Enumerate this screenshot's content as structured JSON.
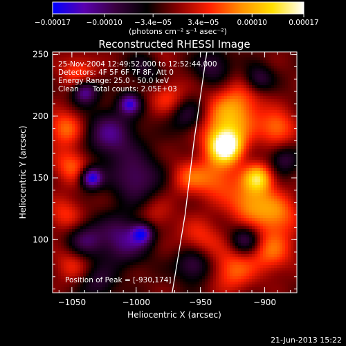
{
  "chart_data": {
    "type": "heatmap",
    "title": "Reconstructed RHESSI Image",
    "xlabel": "Heliocentric X (arcsec)",
    "ylabel": "Heliocentric Y (arcsec)",
    "xlim": [
      -1065,
      -875
    ],
    "ylim": [
      57,
      252
    ],
    "x_ticks": [
      -1050,
      -1000,
      -950,
      -900
    ],
    "x_tick_labels": [
      "−1050",
      "−1000",
      "−950",
      "−900"
    ],
    "y_ticks": [
      100,
      150,
      200,
      250
    ],
    "y_tick_labels": [
      "100",
      "150",
      "200",
      "250"
    ],
    "colorbar": {
      "range": [
        -0.00017,
        0.00017
      ],
      "ticks": [
        -0.00017,
        -0.0001,
        -3.4e-05,
        3.4e-05,
        0.0001,
        0.00017
      ],
      "tick_labels": [
        "−0.00017",
        "−0.00010",
        "−3.4e−05",
        "3.4e−05",
        "0.00010",
        "0.00017"
      ],
      "unit_label": "(photons cm⁻² s⁻¹ asec⁻²)",
      "colors": [
        "#0000ff",
        "#5a00b0",
        "#3a0040",
        "#000000",
        "#8a0000",
        "#ff2000",
        "#ff9000",
        "#ffe000",
        "#ffffff"
      ]
    },
    "annotations": [
      "25-Nov-2004 12:49:52.000 to 12:52:44.000",
      "Detectors: 4F 5F 6F 7F 8F, Att 0",
      "Energy Range: 25.0 - 50.0 keV",
      "Clean      Total counts: 2.05E+03"
    ],
    "peak_label": "Position of Peak = [-930,174]",
    "peak": {
      "x": -930,
      "y": 174
    },
    "limb_line": [
      [
        -972,
        57
      ],
      [
        -962,
        120
      ],
      [
        -955,
        180
      ],
      [
        -945,
        252
      ]
    ],
    "blobs": [
      {
        "x": -930,
        "y": 175,
        "v": 1.0,
        "s": 9
      },
      {
        "x": -932,
        "y": 190,
        "v": 0.55,
        "s": 14
      },
      {
        "x": -938,
        "y": 150,
        "v": 0.45,
        "s": 12
      },
      {
        "x": -920,
        "y": 210,
        "v": 0.45,
        "s": 14
      },
      {
        "x": -905,
        "y": 150,
        "v": 0.75,
        "s": 8
      },
      {
        "x": -912,
        "y": 130,
        "v": 0.55,
        "s": 12
      },
      {
        "x": -890,
        "y": 190,
        "v": 0.5,
        "s": 10
      },
      {
        "x": -890,
        "y": 120,
        "v": 0.5,
        "s": 12
      },
      {
        "x": -895,
        "y": 90,
        "v": 0.45,
        "s": 12
      },
      {
        "x": -925,
        "y": 75,
        "v": 0.45,
        "s": 12
      },
      {
        "x": -950,
        "y": 100,
        "v": 0.35,
        "s": 12
      },
      {
        "x": -960,
        "y": 150,
        "v": 0.35,
        "s": 10
      },
      {
        "x": -975,
        "y": 215,
        "v": 0.35,
        "s": 10
      },
      {
        "x": -985,
        "y": 245,
        "v": 0.3,
        "s": 10
      },
      {
        "x": -1055,
        "y": 190,
        "v": 0.5,
        "s": 10
      },
      {
        "x": -1050,
        "y": 160,
        "v": 0.45,
        "s": 10
      },
      {
        "x": -1045,
        "y": 235,
        "v": 0.4,
        "s": 10
      },
      {
        "x": -1055,
        "y": 120,
        "v": 0.35,
        "s": 10
      },
      {
        "x": -1050,
        "y": 80,
        "v": 0.3,
        "s": 10
      },
      {
        "x": -985,
        "y": 120,
        "v": 0.25,
        "s": 10
      },
      {
        "x": -1035,
        "y": 150,
        "v": -0.9,
        "s": 6
      },
      {
        "x": -1005,
        "y": 210,
        "v": -0.7,
        "s": 6
      },
      {
        "x": -1040,
        "y": 220,
        "v": -0.7,
        "s": 7
      },
      {
        "x": -1020,
        "y": 185,
        "v": -0.55,
        "s": 14
      },
      {
        "x": -1000,
        "y": 150,
        "v": -0.5,
        "s": 14
      },
      {
        "x": -1010,
        "y": 100,
        "v": -0.55,
        "s": 14
      },
      {
        "x": -995,
        "y": 105,
        "v": -0.65,
        "s": 6
      },
      {
        "x": -1040,
        "y": 100,
        "v": -0.45,
        "s": 10
      },
      {
        "x": -990,
        "y": 240,
        "v": -0.5,
        "s": 10
      },
      {
        "x": -960,
        "y": 200,
        "v": -0.4,
        "s": 10
      },
      {
        "x": -955,
        "y": 80,
        "v": -0.5,
        "s": 10
      },
      {
        "x": -915,
        "y": 100,
        "v": -0.5,
        "s": 8
      },
      {
        "x": -905,
        "y": 230,
        "v": -0.45,
        "s": 8
      },
      {
        "x": -940,
        "y": 240,
        "v": -0.4,
        "s": 10
      },
      {
        "x": -885,
        "y": 165,
        "v": -0.4,
        "s": 8
      },
      {
        "x": -1030,
        "y": 65,
        "v": -0.35,
        "s": 10
      }
    ]
  },
  "footer": {
    "date": "21-Jun-2013 15:22"
  }
}
